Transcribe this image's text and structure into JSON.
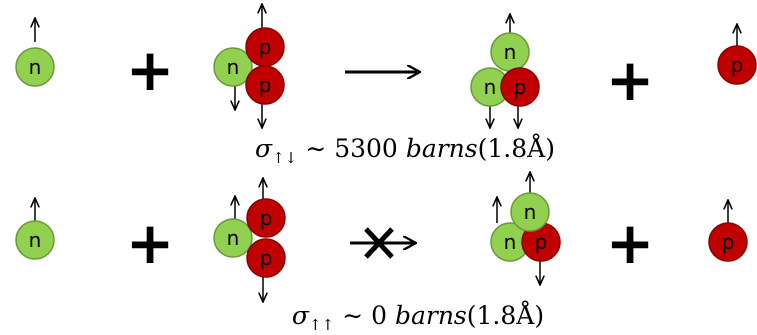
{
  "rows": [
    {
      "particles": [
        "n",
        "n",
        "p",
        "p",
        "n",
        "n",
        "p",
        "p"
      ],
      "plus": [
        "+",
        "+"
      ],
      "cross_section": {
        "symbol": "σ",
        "subscript": "↑↓",
        "relation": "∼",
        "value": "5300",
        "unit": "barns",
        "length": "(1.8Å)"
      }
    },
    {
      "particles": [
        "n",
        "n",
        "p",
        "p",
        "n",
        "n",
        "p",
        "p"
      ],
      "plus": [
        "+",
        "+"
      ],
      "cross_section": {
        "symbol": "σ",
        "subscript": "↑↑",
        "relation": "∼",
        "value": "0",
        "unit": "barns",
        "length": "(1.8Å)"
      }
    }
  ]
}
